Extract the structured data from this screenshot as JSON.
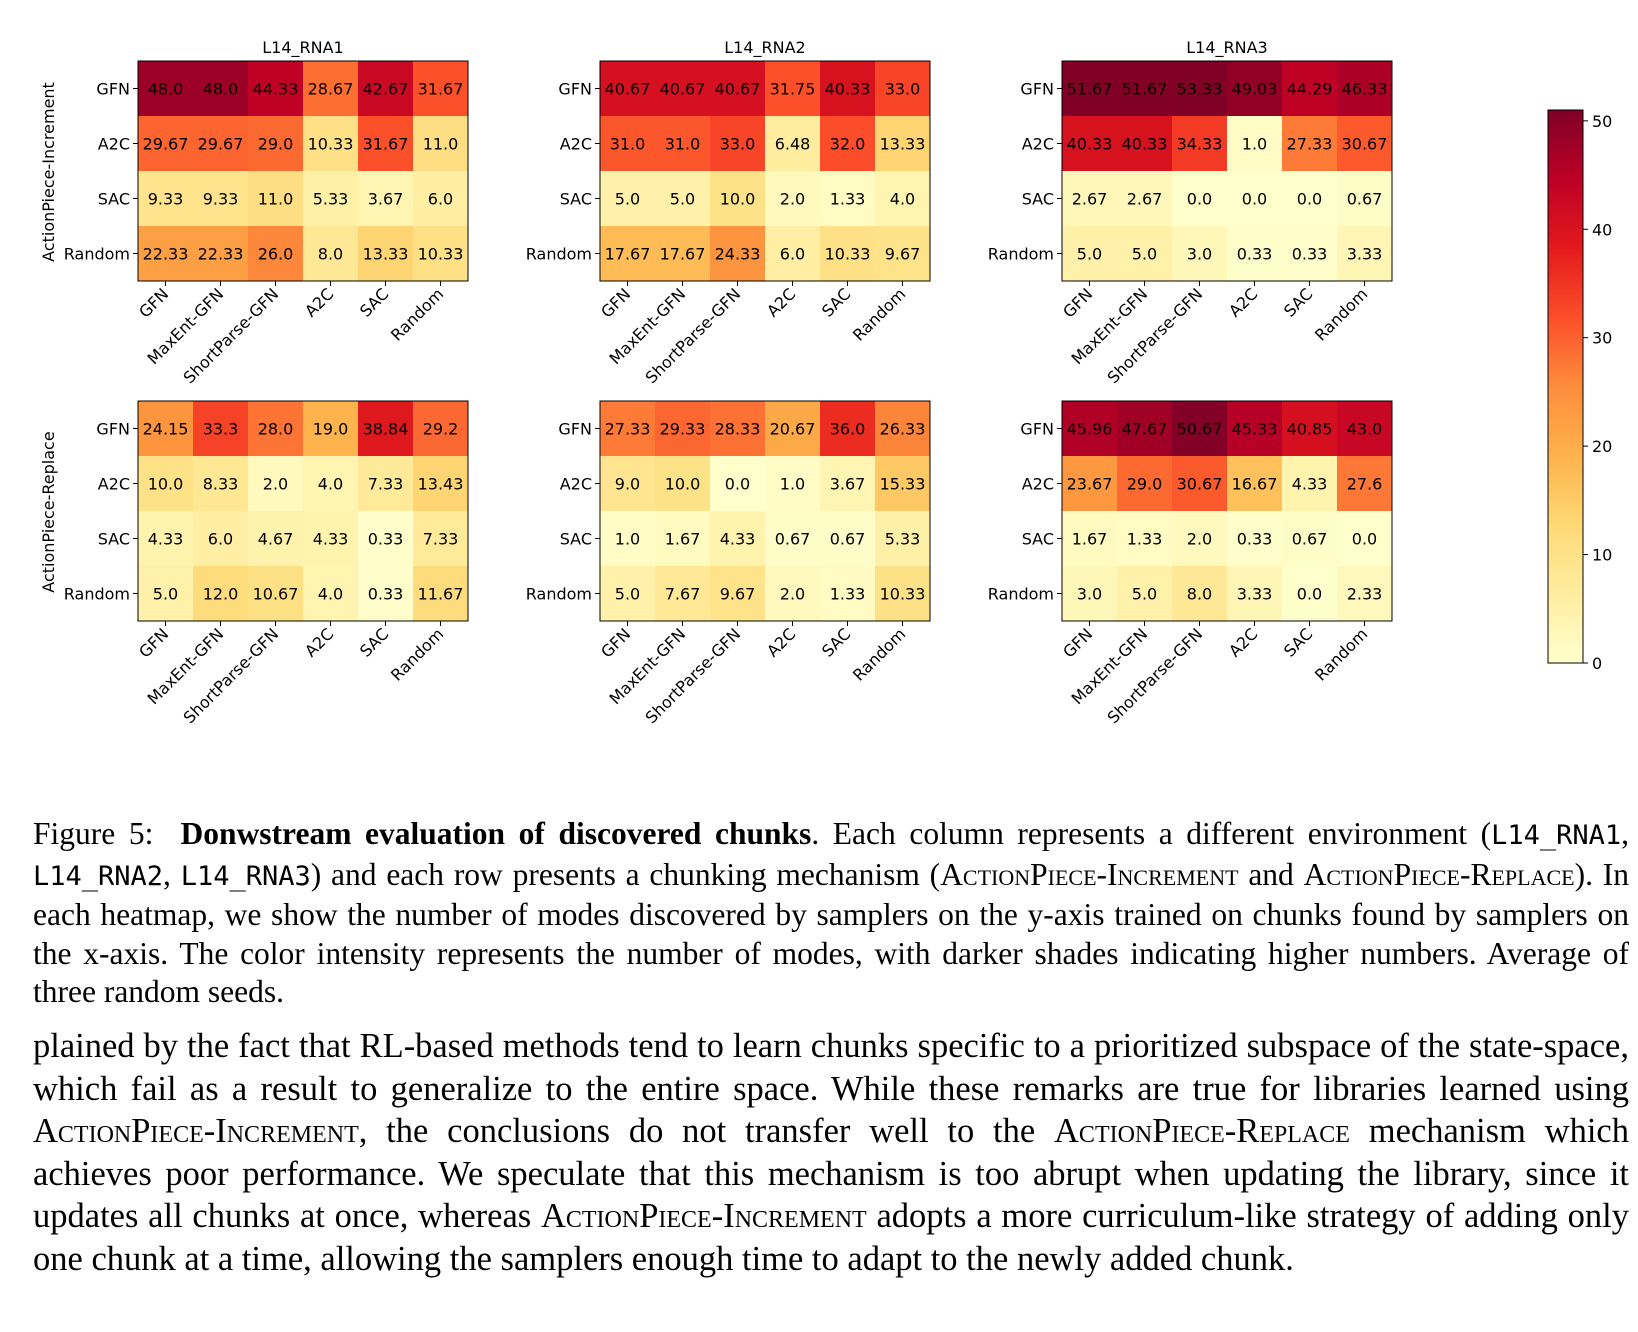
{
  "chart_data": {
    "type": "heatmap",
    "colormap": "YlOrRd",
    "vmin": 0,
    "vmax": 51,
    "colorbar_ticks": [
      0,
      10,
      20,
      30,
      40,
      50
    ],
    "row_group_labels": [
      "ActionPiece-Increment",
      "ActionPiece-Replace"
    ],
    "column_titles": [
      "L14_RNA1",
      "L14_RNA2",
      "L14_RNA3"
    ],
    "y_categories": [
      "GFN",
      "A2C",
      "SAC",
      "Random"
    ],
    "x_categories": [
      "GFN",
      "MaxEnt-GFN",
      "ShortParse-GFN",
      "A2C",
      "SAC",
      "Random"
    ],
    "panels": [
      {
        "title": "L14_RNA1",
        "group": "ActionPiece-Increment",
        "values": [
          [
            "48.0",
            "48.0",
            "44.33",
            "28.67",
            "42.67",
            "31.67"
          ],
          [
            "29.67",
            "29.67",
            "29.0",
            "10.33",
            "31.67",
            "11.0"
          ],
          [
            "9.33",
            "9.33",
            "11.0",
            "5.33",
            "3.67",
            "6.0"
          ],
          [
            "22.33",
            "22.33",
            "26.0",
            "8.0",
            "13.33",
            "10.33"
          ]
        ]
      },
      {
        "title": "L14_RNA2",
        "group": "ActionPiece-Increment",
        "values": [
          [
            "40.67",
            "40.67",
            "40.67",
            "31.75",
            "40.33",
            "33.0"
          ],
          [
            "31.0",
            "31.0",
            "33.0",
            "6.48",
            "32.0",
            "13.33"
          ],
          [
            "5.0",
            "5.0",
            "10.0",
            "2.0",
            "1.33",
            "4.0"
          ],
          [
            "17.67",
            "17.67",
            "24.33",
            "6.0",
            "10.33",
            "9.67"
          ]
        ]
      },
      {
        "title": "L14_RNA3",
        "group": "ActionPiece-Increment",
        "values": [
          [
            "51.67",
            "51.67",
            "53.33",
            "49.03",
            "44.29",
            "46.33"
          ],
          [
            "40.33",
            "40.33",
            "34.33",
            "1.0",
            "27.33",
            "30.67"
          ],
          [
            "2.67",
            "2.67",
            "0.0",
            "0.0",
            "0.0",
            "0.67"
          ],
          [
            "5.0",
            "5.0",
            "3.0",
            "0.33",
            "0.33",
            "3.33"
          ]
        ]
      },
      {
        "title": "",
        "group": "ActionPiece-Replace",
        "values": [
          [
            "24.15",
            "33.3",
            "28.0",
            "19.0",
            "38.84",
            "29.2"
          ],
          [
            "10.0",
            "8.33",
            "2.0",
            "4.0",
            "7.33",
            "13.43"
          ],
          [
            "4.33",
            "6.0",
            "4.67",
            "4.33",
            "0.33",
            "7.33"
          ],
          [
            "5.0",
            "12.0",
            "10.67",
            "4.0",
            "0.33",
            "11.67"
          ]
        ]
      },
      {
        "title": "",
        "group": "ActionPiece-Replace",
        "values": [
          [
            "27.33",
            "29.33",
            "28.33",
            "20.67",
            "36.0",
            "26.33"
          ],
          [
            "9.0",
            "10.0",
            "0.0",
            "1.0",
            "3.67",
            "15.33"
          ],
          [
            "1.0",
            "1.67",
            "4.33",
            "0.67",
            "0.67",
            "5.33"
          ],
          [
            "5.0",
            "7.67",
            "9.67",
            "2.0",
            "1.33",
            "10.33"
          ]
        ]
      },
      {
        "title": "",
        "group": "ActionPiece-Replace",
        "values": [
          [
            "45.96",
            "47.67",
            "50.67",
            "45.33",
            "40.85",
            "43.0"
          ],
          [
            "23.67",
            "29.0",
            "30.67",
            "16.67",
            "4.33",
            "27.6"
          ],
          [
            "1.67",
            "1.33",
            "2.0",
            "0.33",
            "0.67",
            "0.0"
          ],
          [
            "3.0",
            "5.0",
            "8.0",
            "3.33",
            "0.0",
            "2.33"
          ]
        ]
      }
    ]
  },
  "caption": {
    "label": "Figure 5:",
    "bold_title": "Donwstream evaluation of discovered chunks",
    "text_1": ". Each column represents a different environment (",
    "env_1": "L14_RNA1",
    "sep_1": ", ",
    "env_2": "L14_RNA2",
    "sep_2": ", ",
    "env_3": "L14_RNA3",
    "text_2": ") and each row presents a chunking mechanism (",
    "mech_1": "ActionPiece-Increment",
    "text_3": " and ",
    "mech_2": "ActionPiece-Replace",
    "text_4": "). In each heatmap, we show the number of modes discovered by samplers on the y-axis trained on chunks found by samplers on the x-axis. The color intensity represents the number of modes, with darker shades indicating higher numbers. Average of three random seeds."
  },
  "body": {
    "text_1": "plained by the fact that RL-based methods tend to learn chunks specific to a prioritized subspace of the state-space, which fail as a result to generalize to the entire space. While these remarks are true for libraries learned using ",
    "mech_1": "ActionPiece-Increment",
    "text_2": ", the conclusions do not transfer well to the ",
    "mech_2": "ActionPiece-Replace",
    "text_3": " mechanism which achieves poor performance. We speculate that this mechanism is too abrupt when updating the library, since it updates all chunks at once, whereas ",
    "mech_3": "ActionPiece-Increment",
    "text_4": " adopts a more curriculum-like strategy of adding only one chunk at a time, allowing the samplers enough time to adapt to the newly added chunk."
  }
}
